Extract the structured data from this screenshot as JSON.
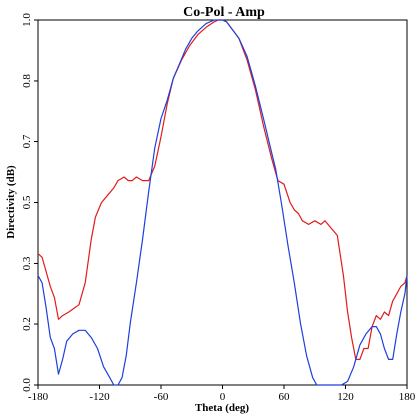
{
  "chart_data": {
    "type": "line",
    "title": "Co-Pol - Amp",
    "xlabel": "Theta (deg)",
    "ylabel": "Directivity (dB)",
    "xlim": [
      -180,
      180
    ],
    "ylim": [
      0.0,
      1.0
    ],
    "xticks": [
      -180,
      -120,
      -60,
      0,
      60,
      120,
      180
    ],
    "yticks": [
      0.0,
      0.2,
      0.3,
      0.5,
      0.7,
      0.8,
      1.0
    ],
    "ytick_labels": [
      "0.0",
      "0.2",
      "0.3",
      "0.5",
      "0.7",
      "0.8",
      "1.0"
    ],
    "grid": false,
    "series": [
      {
        "color": "#e11b1b",
        "x": [
          -180,
          -176,
          -172,
          -168,
          -164,
          -160,
          -156,
          -150,
          -145,
          -140,
          -134,
          -128,
          -124,
          -118,
          -112,
          -106,
          -102,
          -96,
          -92,
          -88,
          -84,
          -78,
          -72,
          -66,
          -60,
          -54,
          -48,
          -40,
          -32,
          -24,
          -16,
          -8,
          -4,
          0,
          4,
          8,
          16,
          24,
          32,
          40,
          48,
          54,
          60,
          66,
          70,
          74,
          78,
          84,
          90,
          96,
          100,
          106,
          112,
          118,
          122,
          126,
          130,
          134,
          138,
          142,
          146,
          150,
          154,
          158,
          162,
          166,
          170,
          174,
          178,
          180
        ],
        "y": [
          0.36,
          0.35,
          0.31,
          0.27,
          0.24,
          0.18,
          0.19,
          0.2,
          0.21,
          0.22,
          0.28,
          0.4,
          0.46,
          0.5,
          0.52,
          0.54,
          0.56,
          0.57,
          0.56,
          0.56,
          0.57,
          0.56,
          0.56,
          0.6,
          0.68,
          0.77,
          0.84,
          0.89,
          0.93,
          0.96,
          0.98,
          0.995,
          1.0,
          1.0,
          0.995,
          0.98,
          0.95,
          0.89,
          0.81,
          0.71,
          0.62,
          0.56,
          0.55,
          0.5,
          0.48,
          0.47,
          0.45,
          0.44,
          0.45,
          0.44,
          0.45,
          0.43,
          0.41,
          0.3,
          0.2,
          0.13,
          0.07,
          0.07,
          0.1,
          0.1,
          0.16,
          0.19,
          0.18,
          0.2,
          0.19,
          0.23,
          0.25,
          0.27,
          0.28,
          0.3
        ]
      },
      {
        "color": "#1f3fdc",
        "x": [
          -180,
          -176,
          -172,
          -168,
          -164,
          -160,
          -156,
          -152,
          -146,
          -140,
          -134,
          -128,
          -122,
          -116,
          -110,
          -106,
          -102,
          -98,
          -94,
          -90,
          -84,
          -78,
          -72,
          -66,
          -60,
          -54,
          -48,
          -42,
          -36,
          -30,
          -24,
          -16,
          -8,
          -4,
          0,
          4,
          8,
          16,
          24,
          32,
          40,
          46,
          52,
          58,
          64,
          70,
          76,
          82,
          88,
          92,
          96,
          100,
          104,
          108,
          112,
          116,
          122,
          128,
          134,
          140,
          146,
          150,
          154,
          158,
          162,
          166,
          170,
          174,
          178,
          180
        ],
        "y": [
          0.3,
          0.28,
          0.21,
          0.13,
          0.1,
          0.03,
          0.07,
          0.12,
          0.14,
          0.15,
          0.15,
          0.13,
          0.1,
          0.05,
          0.02,
          0.0,
          0.0,
          0.02,
          0.08,
          0.17,
          0.28,
          0.4,
          0.53,
          0.65,
          0.73,
          0.78,
          0.84,
          0.88,
          0.92,
          0.95,
          0.97,
          0.99,
          1.0,
          1.0,
          1.0,
          0.995,
          0.98,
          0.95,
          0.9,
          0.82,
          0.73,
          0.66,
          0.59,
          0.49,
          0.38,
          0.28,
          0.17,
          0.08,
          0.02,
          0.0,
          0.0,
          0.0,
          0.0,
          0.0,
          0.0,
          0.0,
          0.01,
          0.05,
          0.11,
          0.14,
          0.16,
          0.16,
          0.14,
          0.1,
          0.07,
          0.07,
          0.14,
          0.2,
          0.25,
          0.3
        ]
      }
    ]
  }
}
